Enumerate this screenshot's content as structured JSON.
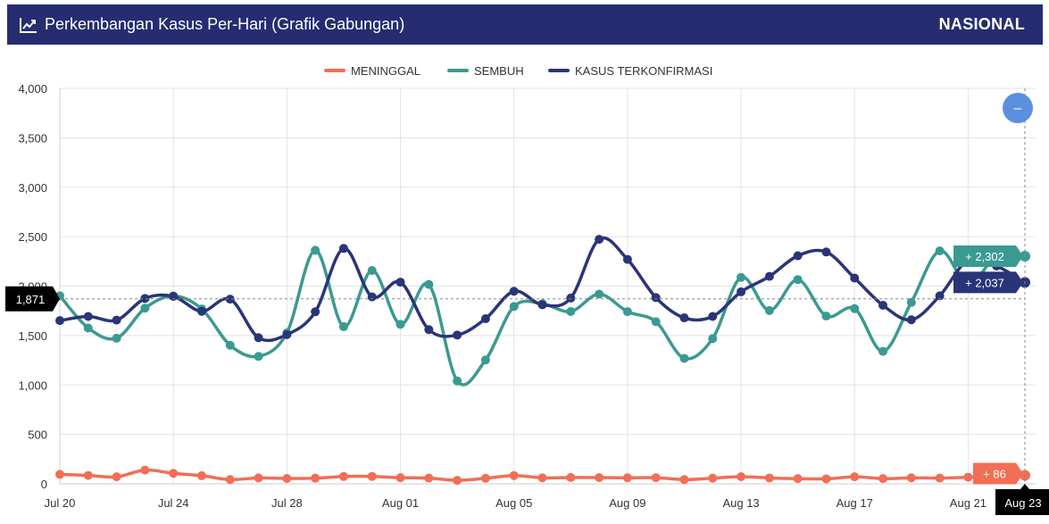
{
  "header": {
    "title": "Perkembangan Kasus Per-Hari (Grafik Gabungan)",
    "scope_label": "NASIONAL",
    "title_icon": "line-chart-icon"
  },
  "colors": {
    "header_bg": "#252d70",
    "meninggal": "#f26e55",
    "sembuh": "#3a9a91",
    "kasus": "#2a3478",
    "zoom_button": "#5b8fe0"
  },
  "zoom_button_label": "–",
  "chart_data": {
    "type": "line",
    "x_start": "2020-07-20",
    "x_end": "2020-08-23",
    "ylim": [
      0,
      4000
    ],
    "yticks": [
      0,
      500,
      1000,
      1500,
      2000,
      2500,
      3000,
      3500,
      4000
    ],
    "ytick_labels": [
      "0",
      "500",
      "1,000",
      "1,500",
      "2,000",
      "2,500",
      "3,000",
      "3,500",
      "4,000"
    ],
    "xtick_labels": [
      "Jul 20",
      "Jul 24",
      "Jul 28",
      "Aug 01",
      "Aug 05",
      "Aug 09",
      "Aug 13",
      "Aug 17",
      "Aug 21"
    ],
    "xticks": [
      "2020-07-20",
      "2020-07-24",
      "2020-07-28",
      "2020-08-01",
      "2020-08-05",
      "2020-08-09",
      "2020-08-13",
      "2020-08-17",
      "2020-08-21"
    ],
    "grid": true,
    "legend_position": "top-center",
    "series": [
      {
        "name": "MENINGGAL",
        "values": [
          96,
          85,
          71,
          139,
          106,
          82,
          43,
          60,
          54,
          57,
          74,
          75,
          62,
          58,
          35,
          56,
          84,
          61,
          64,
          63,
          61,
          62,
          43,
          57,
          72,
          59,
          53,
          50,
          71,
          53,
          61,
          58,
          67,
          83,
          86
        ]
      },
      {
        "name": "SEMBUH",
        "values": [
          1902,
          1576,
          1473,
          1777,
          1901,
          1769,
          1402,
          1289,
          1527,
          2362,
          1590,
          2158,
          1613,
          2017,
          1041,
          1253,
          1794,
          1822,
          1743,
          1919,
          1742,
          1640,
          1269,
          1470,
          2088,
          1753,
          2066,
          1697,
          1772,
          1340,
          1836,
          2356,
          2019,
          2302,
          2302
        ]
      },
      {
        "name": "KASUS TERKONFIRMASI",
        "values": [
          1651,
          1693,
          1656,
          1875,
          1896,
          1745,
          1868,
          1478,
          1509,
          1740,
          2381,
          1891,
          2040,
          1560,
          1505,
          1670,
          1948,
          1811,
          1879,
          2473,
          2270,
          1884,
          1679,
          1693,
          1942,
          2098,
          2307,
          2345,
          2081,
          1806,
          1659,
          1902,
          2263,
          2203,
          2037
        ]
      }
    ],
    "crosshair_value_label": "1,871",
    "crosshair_date_label": "Aug 23",
    "tooltips": [
      {
        "series": "SEMBUH",
        "label": "+ 2,302"
      },
      {
        "series": "KASUS TERKONFIRMASI",
        "label": "+ 2,037"
      },
      {
        "series": "MENINGGAL",
        "label": "+ 86"
      }
    ]
  }
}
